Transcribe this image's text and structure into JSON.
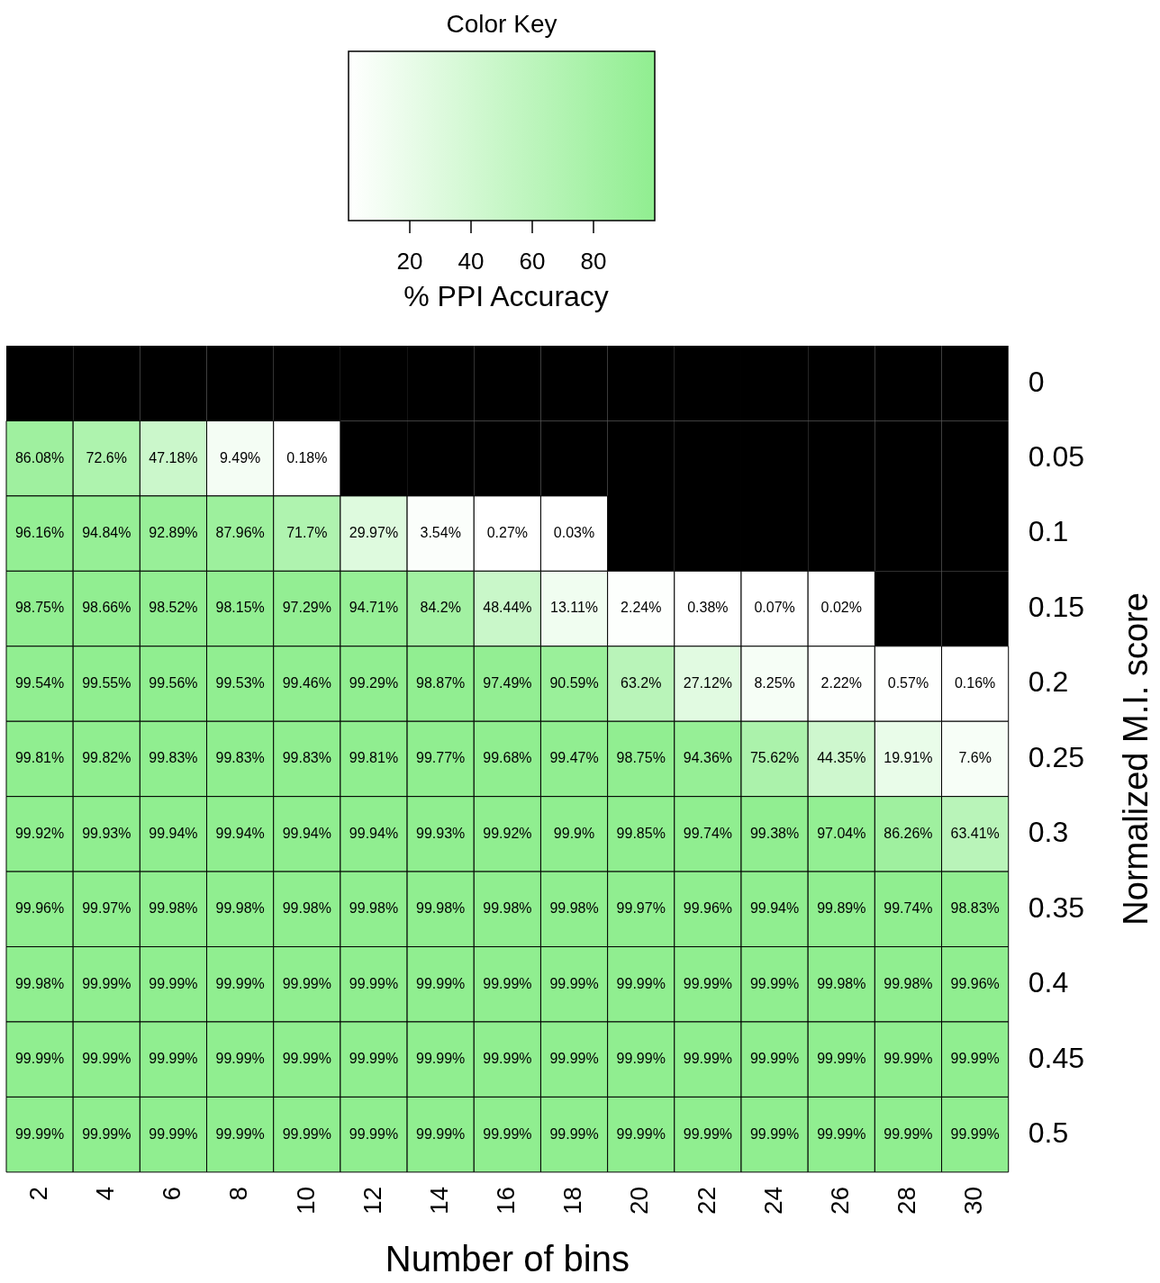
{
  "chart_data": {
    "type": "heatmap",
    "legend_title": "Color Key",
    "clabel": "% PPI Accuracy",
    "xlabel": "Number of bins",
    "ylabel": "Normalized M.I. score",
    "categories": [
      "2",
      "4",
      "6",
      "8",
      "10",
      "12",
      "14",
      "16",
      "18",
      "20",
      "22",
      "24",
      "26",
      "28",
      "30"
    ],
    "y_categories": [
      "0",
      "0.05",
      "0.1",
      "0.15",
      "0.2",
      "0.25",
      "0.3",
      "0.35",
      "0.4",
      "0.45",
      "0.5"
    ],
    "clim": [
      0,
      100
    ],
    "cticks": [
      20,
      40,
      60,
      80
    ],
    "cells": [
      [
        null,
        null,
        null,
        null,
        null,
        null,
        null,
        null,
        null,
        null,
        null,
        null,
        null,
        null,
        null
      ],
      [
        86.08,
        72.6,
        47.18,
        9.49,
        0.18,
        null,
        null,
        null,
        null,
        null,
        null,
        null,
        null,
        null,
        null
      ],
      [
        96.16,
        94.84,
        92.89,
        87.96,
        71.7,
        29.97,
        3.54,
        0.27,
        0.03,
        null,
        null,
        null,
        null,
        null,
        null
      ],
      [
        98.75,
        98.66,
        98.52,
        98.15,
        97.29,
        94.71,
        84.2,
        48.44,
        13.11,
        2.24,
        0.38,
        0.07,
        0.02,
        null,
        null
      ],
      [
        99.54,
        99.55,
        99.56,
        99.53,
        99.46,
        99.29,
        98.87,
        97.49,
        90.59,
        63.2,
        27.12,
        8.25,
        2.22,
        0.57,
        0.16
      ],
      [
        99.81,
        99.82,
        99.83,
        99.83,
        99.83,
        99.81,
        99.77,
        99.68,
        99.47,
        98.75,
        94.36,
        75.62,
        44.35,
        19.91,
        7.6
      ],
      [
        99.92,
        99.93,
        99.94,
        99.94,
        99.94,
        99.94,
        99.93,
        99.92,
        99.9,
        99.85,
        99.74,
        99.38,
        97.04,
        86.26,
        63.41
      ],
      [
        99.96,
        99.97,
        99.98,
        99.98,
        99.98,
        99.98,
        99.98,
        99.98,
        99.98,
        99.97,
        99.96,
        99.94,
        99.89,
        99.74,
        98.83
      ],
      [
        99.98,
        99.99,
        99.99,
        99.99,
        99.99,
        99.99,
        99.99,
        99.99,
        99.99,
        99.99,
        99.99,
        99.99,
        99.98,
        99.98,
        99.96
      ],
      [
        99.99,
        99.99,
        99.99,
        99.99,
        99.99,
        99.99,
        99.99,
        99.99,
        99.99,
        99.99,
        99.99,
        99.99,
        99.99,
        99.99,
        99.99
      ],
      [
        99.99,
        99.99,
        99.99,
        99.99,
        99.99,
        99.99,
        99.99,
        99.99,
        99.99,
        99.99,
        99.99,
        99.99,
        99.99,
        99.99,
        99.99
      ]
    ],
    "cell_labels": [
      [
        null,
        null,
        null,
        null,
        null,
        null,
        null,
        null,
        null,
        null,
        null,
        null,
        null,
        null,
        null
      ],
      [
        "86.08%",
        "72.6%",
        "47.18%",
        "9.49%",
        "0.18%",
        null,
        null,
        null,
        null,
        null,
        null,
        null,
        null,
        null,
        null
      ],
      [
        "96.16%",
        "94.84%",
        "92.89%",
        "87.96%",
        "71.7%",
        "29.97%",
        "3.54%",
        "0.27%",
        "0.03%",
        null,
        null,
        null,
        null,
        null,
        null
      ],
      [
        "98.75%",
        "98.66%",
        "98.52%",
        "98.15%",
        "97.29%",
        "94.71%",
        "84.2%",
        "48.44%",
        "13.11%",
        "2.24%",
        "0.38%",
        "0.07%",
        "0.02%",
        null,
        null
      ],
      [
        "99.54%",
        "99.55%",
        "99.56%",
        "99.53%",
        "99.46%",
        "99.29%",
        "98.87%",
        "97.49%",
        "90.59%",
        "63.2%",
        "27.12%",
        "8.25%",
        "2.22%",
        "0.57%",
        "0.16%"
      ],
      [
        "99.81%",
        "99.82%",
        "99.83%",
        "99.83%",
        "99.83%",
        "99.81%",
        "99.77%",
        "99.68%",
        "99.47%",
        "98.75%",
        "94.36%",
        "75.62%",
        "44.35%",
        "19.91%",
        "7.6%"
      ],
      [
        "99.92%",
        "99.93%",
        "99.94%",
        "99.94%",
        "99.94%",
        "99.94%",
        "99.93%",
        "99.92%",
        "99.9%",
        "99.85%",
        "99.74%",
        "99.38%",
        "97.04%",
        "86.26%",
        "63.41%"
      ],
      [
        "99.96%",
        "99.97%",
        "99.98%",
        "99.98%",
        "99.98%",
        "99.98%",
        "99.98%",
        "99.98%",
        "99.98%",
        "99.97%",
        "99.96%",
        "99.94%",
        "99.89%",
        "99.74%",
        "98.83%"
      ],
      [
        "99.98%",
        "99.99%",
        "99.99%",
        "99.99%",
        "99.99%",
        "99.99%",
        "99.99%",
        "99.99%",
        "99.99%",
        "99.99%",
        "99.99%",
        "99.99%",
        "99.98%",
        "99.98%",
        "99.96%"
      ],
      [
        "99.99%",
        "99.99%",
        "99.99%",
        "99.99%",
        "99.99%",
        "99.99%",
        "99.99%",
        "99.99%",
        "99.99%",
        "99.99%",
        "99.99%",
        "99.99%",
        "99.99%",
        "99.99%",
        "99.99%"
      ],
      [
        "99.99%",
        "99.99%",
        "99.99%",
        "99.99%",
        "99.99%",
        "99.99%",
        "99.99%",
        "99.99%",
        "99.99%",
        "99.99%",
        "99.99%",
        "99.99%",
        "99.99%",
        "99.99%",
        "99.99%"
      ]
    ]
  }
}
